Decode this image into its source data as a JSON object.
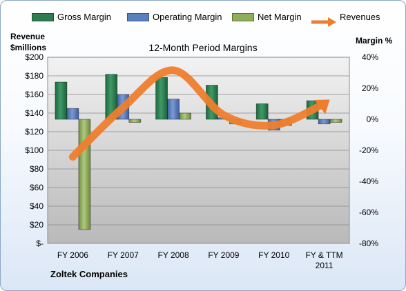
{
  "legend": [
    {
      "label": "Gross Margin",
      "icon": "bar-swatch",
      "color": "#2e7d52"
    },
    {
      "label": "Operating Margin",
      "icon": "bar-swatch",
      "color": "#5b80c0"
    },
    {
      "label": "Net Margin",
      "icon": "bar-swatch",
      "color": "#8fae5a"
    },
    {
      "label": "Revenues",
      "icon": "arrow-swatch",
      "color": "#ee7e2d"
    }
  ],
  "company": "Zoltek Companies",
  "chart_data": {
    "type": "bar",
    "title": "12-Month Period Margins",
    "ylabel_left": "Revenue $millions",
    "ylabel_right": "Margin %",
    "categories": [
      "FY 2006",
      "FY 2007",
      "FY 2008",
      "FY 2009",
      "FY 2010",
      "FY & TTM 2011"
    ],
    "y_left": {
      "range": [
        0,
        200
      ],
      "step": 20,
      "ticks": [
        "$-",
        "$20",
        "$40",
        "$60",
        "$80",
        "$100",
        "$120",
        "$140",
        "$160",
        "$180",
        "$200"
      ]
    },
    "y_right": {
      "range": [
        -80,
        40
      ],
      "step": 20,
      "ticks": [
        "-80%",
        "-60%",
        "-40%",
        "-20%",
        "0%",
        "20%",
        "40%"
      ]
    },
    "series": [
      {
        "name": "Gross Margin",
        "axis": "right",
        "color": "#2e7d52",
        "values": [
          24,
          29,
          27,
          22,
          10,
          12
        ]
      },
      {
        "name": "Operating Margin",
        "axis": "right",
        "color": "#5b80c0",
        "values": [
          7,
          16,
          13,
          1,
          -7,
          -3
        ]
      },
      {
        "name": "Net Margin",
        "axis": "right",
        "color": "#8fae5a",
        "values": [
          -71,
          -2,
          4,
          -3,
          -4,
          -2
        ]
      },
      {
        "name": "Revenues",
        "axis": "left",
        "type": "line",
        "color": "#ee7e2d",
        "values": [
          93,
          146,
          186,
          138,
          127,
          150
        ]
      }
    ],
    "grid": true,
    "legend": "top"
  }
}
